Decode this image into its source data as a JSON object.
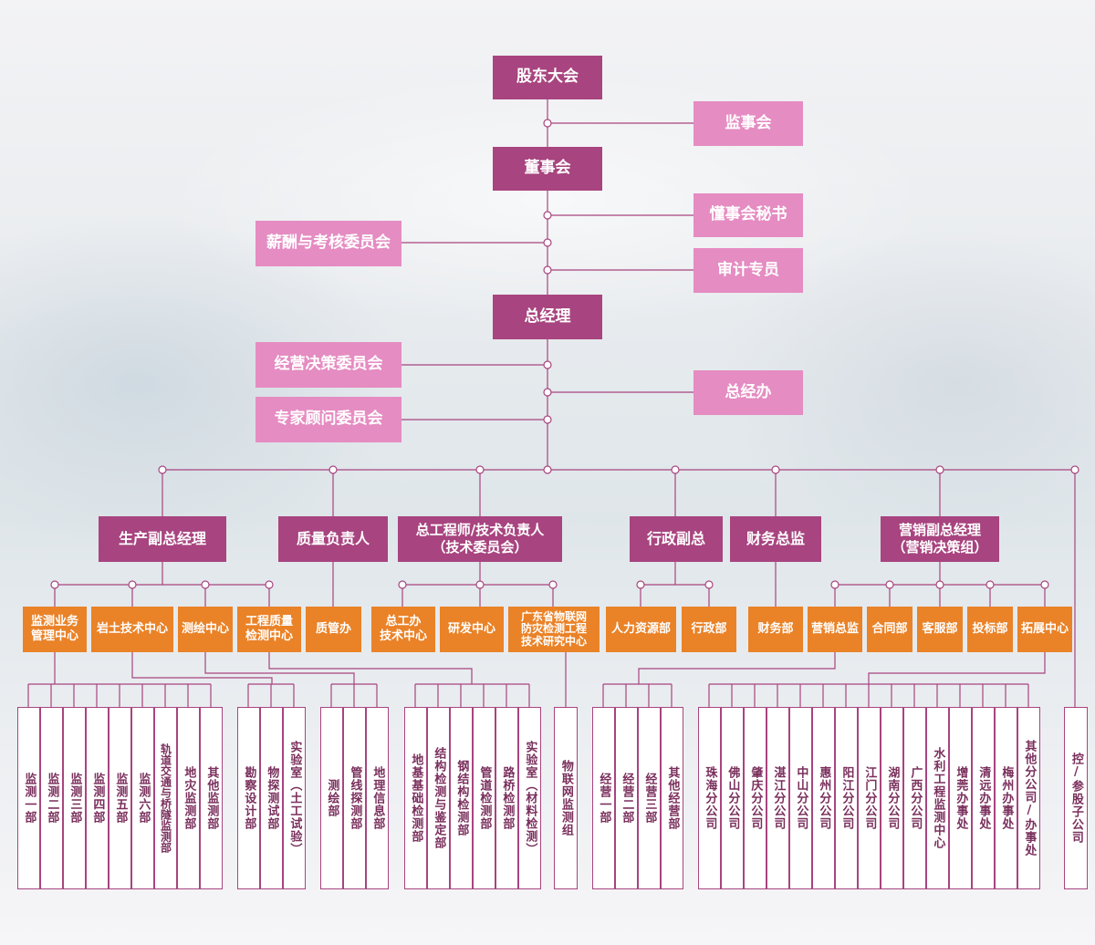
{
  "colors": {
    "dark": "#a8447f",
    "light": "#e58cc2",
    "orange": "#ea8227",
    "line": "#a8447f"
  },
  "top": {
    "shareholders": "股东大会",
    "supervisory": "监事会",
    "board": "董事会",
    "board_secretary": "懂事会秘书",
    "compensation_committee": "薪酬与考核委员会",
    "audit": "审计专员",
    "gm": "总经理",
    "business_committee": "经营决策委员会",
    "gm_office": "总经办",
    "expert_committee": "专家顾问委员会"
  },
  "vps": {
    "production": "生产副总经理",
    "quality": "质量负责人",
    "chief_engineer": "总工程师/技术负责人\n（技术委员会）",
    "admin": "行政副总",
    "finance": "财务总监",
    "marketing": "营销副总经理\n（营销决策组）"
  },
  "depts": {
    "monitor_center": "监测业务\n管理中心",
    "geotech_center": "岩土技术中心",
    "survey_center": "测绘中心",
    "quality_center": "工程质量\n检测中心",
    "quality_office": "质管办",
    "chief_office": "总工办\n技术中心",
    "rnd_center": "研发中心",
    "iot_center": "广东省物联网\n防灾检测工程\n技术研究中心",
    "hr": "人力资源部",
    "admin_dept": "行政部",
    "finance_dept": "财务部",
    "marketing_director": "营销总监",
    "contract_dept": "合同部",
    "service_dept": "客服部",
    "bid_dept": "投标部",
    "expansion_center": "拓展中心"
  },
  "leaves": {
    "monitor": [
      "监测一部",
      "监测二部",
      "监测三部",
      "监测四部",
      "监测五部",
      "监测六部",
      "轨道交通与桥隧监测部",
      "地灾监测部",
      "其他监测部"
    ],
    "geotech": [
      "勘察设计部",
      "物探测试部",
      "实验室（土工试验）"
    ],
    "survey": [
      "测绘部",
      "管线探测部",
      "地理信息部"
    ],
    "quality": [
      "地基基础检测部",
      "结构检测与鉴定部",
      "钢结构检测部",
      "管道检测部",
      "路桥检测部",
      "实验室（材料检测）"
    ],
    "iot": [
      "物联网监测组"
    ],
    "business": [
      "经营一部",
      "经营二部",
      "经营三部",
      "其他经营部"
    ],
    "branches": [
      "珠海分公司",
      "佛山分公司",
      "肇庆分公司",
      "湛江分公司",
      "中山分公司",
      "惠州分公司",
      "阳江分公司",
      "江门分公司",
      "湖南分公司",
      "广西分公司",
      "水利工程监测中心",
      "增莞办事处",
      "清远办事处",
      "梅州办事处",
      "其他分公司/办事处"
    ],
    "holding": [
      "控/参股子公司"
    ]
  }
}
